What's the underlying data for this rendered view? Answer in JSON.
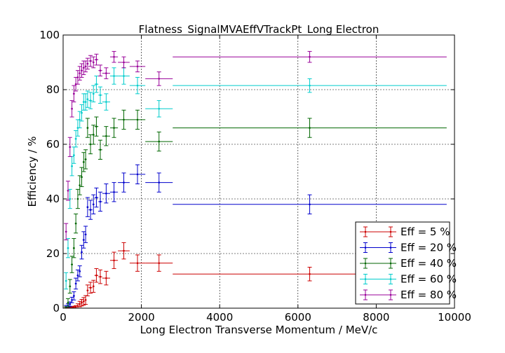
{
  "chart_data": {
    "type": "scatter",
    "title": "Flatness_SignalMVAEffVTrackPt_Long Electron",
    "xlabel": "Long Electron Transverse Momentum / MeV/c",
    "ylabel": "Efficiency / %",
    "xlim": [
      0,
      10000
    ],
    "ylim": [
      0,
      100
    ],
    "xticks": [
      "0",
      "2000",
      "4000",
      "6000",
      "8000",
      "10000"
    ],
    "yticks": [
      "0",
      "20",
      "40",
      "60",
      "80",
      "100"
    ],
    "grid": true,
    "legend_position": "bottom-right",
    "series": [
      {
        "name": "Eff = 5 %",
        "color": "#cc0000",
        "points": [
          [
            75,
            0.1,
            25,
            0.3
          ],
          [
            125,
            0.1,
            25,
            0.3
          ],
          [
            175,
            0.2,
            25,
            0.3
          ],
          [
            225,
            0.2,
            25,
            0.3
          ],
          [
            275,
            0.3,
            25,
            0.4
          ],
          [
            325,
            0.4,
            25,
            0.5
          ],
          [
            375,
            0.8,
            25,
            0.8
          ],
          [
            425,
            1.5,
            25,
            1.0
          ],
          [
            475,
            2.0,
            25,
            1.2
          ],
          [
            525,
            2.5,
            25,
            1.4
          ],
          [
            575,
            3.0,
            25,
            1.6
          ],
          [
            625,
            6.5,
            25,
            2.0
          ],
          [
            700,
            7.5,
            50,
            2.0
          ],
          [
            775,
            8.0,
            25,
            2.2
          ],
          [
            850,
            12.0,
            50,
            2.5
          ],
          [
            950,
            11.5,
            50,
            2.5
          ],
          [
            1100,
            11.0,
            100,
            2.5
          ],
          [
            1300,
            17.5,
            100,
            3.0
          ],
          [
            1550,
            21.0,
            150,
            3.0
          ],
          [
            1900,
            16.5,
            200,
            3.0
          ],
          [
            2450,
            16.5,
            350,
            3.0
          ],
          [
            6300,
            12.5,
            3500,
            2.5
          ]
        ]
      },
      {
        "name": "Eff = 20 %",
        "color": "#0000cc",
        "points": [
          [
            75,
            0.5,
            25,
            0.5
          ],
          [
            125,
            1.0,
            25,
            0.6
          ],
          [
            175,
            1.5,
            25,
            0.8
          ],
          [
            225,
            3.0,
            25,
            1.0
          ],
          [
            275,
            4.5,
            25,
            1.5
          ],
          [
            325,
            9.0,
            25,
            2.0
          ],
          [
            375,
            12.0,
            25,
            2.0
          ],
          [
            425,
            13.5,
            25,
            2.0
          ],
          [
            475,
            20.5,
            25,
            2.5
          ],
          [
            525,
            25.0,
            25,
            3.0
          ],
          [
            575,
            27.0,
            25,
            3.0
          ],
          [
            625,
            37.0,
            25,
            3.5
          ],
          [
            700,
            36.0,
            50,
            3.5
          ],
          [
            775,
            38.0,
            25,
            3.5
          ],
          [
            850,
            40.5,
            50,
            3.5
          ],
          [
            950,
            39.0,
            50,
            3.5
          ],
          [
            1100,
            42.0,
            100,
            3.5
          ],
          [
            1300,
            42.5,
            100,
            3.5
          ],
          [
            1550,
            46.0,
            150,
            3.5
          ],
          [
            1900,
            49.0,
            200,
            3.5
          ],
          [
            2450,
            46.0,
            350,
            3.5
          ],
          [
            6300,
            38.0,
            3500,
            3.5
          ]
        ]
      },
      {
        "name": "Eff = 40 %",
        "color": "#006600",
        "points": [
          [
            75,
            0.0,
            25,
            0.5
          ],
          [
            125,
            2.0,
            25,
            1.5
          ],
          [
            175,
            8.0,
            25,
            2.5
          ],
          [
            225,
            16.0,
            25,
            3.0
          ],
          [
            275,
            22.0,
            25,
            3.5
          ],
          [
            325,
            31.0,
            25,
            3.5
          ],
          [
            375,
            40.0,
            25,
            3.5
          ],
          [
            425,
            45.0,
            25,
            3.5
          ],
          [
            475,
            48.0,
            25,
            3.5
          ],
          [
            525,
            53.5,
            25,
            3.5
          ],
          [
            575,
            54.5,
            25,
            3.5
          ],
          [
            625,
            66.0,
            25,
            3.5
          ],
          [
            700,
            60.0,
            50,
            3.5
          ],
          [
            775,
            63.5,
            25,
            3.5
          ],
          [
            850,
            66.5,
            50,
            3.5
          ],
          [
            950,
            58.0,
            50,
            3.5
          ],
          [
            1100,
            63.0,
            100,
            3.5
          ],
          [
            1300,
            66.0,
            100,
            3.5
          ],
          [
            1550,
            69.0,
            150,
            3.5
          ],
          [
            1900,
            69.0,
            200,
            3.5
          ],
          [
            2450,
            61.0,
            350,
            3.5
          ],
          [
            6300,
            66.0,
            3500,
            3.5
          ]
        ]
      },
      {
        "name": "Eff = 60 %",
        "color": "#00cccc",
        "points": [
          [
            75,
            10.0,
            25,
            3.0
          ],
          [
            125,
            22.0,
            25,
            3.5
          ],
          [
            175,
            40.0,
            25,
            3.5
          ],
          [
            225,
            52.0,
            25,
            3.5
          ],
          [
            275,
            56.0,
            25,
            3.0
          ],
          [
            325,
            62.0,
            25,
            3.0
          ],
          [
            375,
            66.0,
            25,
            3.0
          ],
          [
            425,
            69.0,
            25,
            3.0
          ],
          [
            475,
            71.5,
            25,
            3.0
          ],
          [
            525,
            75.5,
            25,
            3.0
          ],
          [
            575,
            75.5,
            25,
            3.0
          ],
          [
            625,
            76.5,
            25,
            3.0
          ],
          [
            700,
            76.0,
            50,
            3.0
          ],
          [
            775,
            78.5,
            25,
            3.0
          ],
          [
            850,
            82.0,
            50,
            3.0
          ],
          [
            950,
            78.0,
            50,
            3.0
          ],
          [
            1100,
            75.5,
            100,
            3.0
          ],
          [
            1300,
            85.0,
            100,
            3.0
          ],
          [
            1550,
            85.0,
            150,
            3.0
          ],
          [
            1900,
            81.5,
            200,
            3.0
          ],
          [
            2450,
            73.0,
            350,
            3.0
          ],
          [
            6300,
            81.5,
            3500,
            2.5
          ]
        ]
      },
      {
        "name": "Eff = 80 %",
        "color": "#990099",
        "points": [
          [
            75,
            28.0,
            25,
            3.0
          ],
          [
            125,
            43.0,
            25,
            3.5
          ],
          [
            175,
            59.0,
            25,
            3.5
          ],
          [
            225,
            73.0,
            25,
            3.0
          ],
          [
            275,
            78.5,
            25,
            3.0
          ],
          [
            325,
            82.0,
            25,
            2.5
          ],
          [
            375,
            84.5,
            25,
            2.5
          ],
          [
            425,
            86.0,
            25,
            2.5
          ],
          [
            475,
            87.0,
            25,
            2.5
          ],
          [
            525,
            88.0,
            25,
            2.5
          ],
          [
            575,
            88.5,
            25,
            2.0
          ],
          [
            625,
            89.5,
            25,
            2.0
          ],
          [
            700,
            90.5,
            50,
            2.0
          ],
          [
            775,
            90.0,
            25,
            2.0
          ],
          [
            850,
            91.0,
            50,
            2.0
          ],
          [
            950,
            87.0,
            50,
            2.0
          ],
          [
            1100,
            86.0,
            100,
            2.0
          ],
          [
            1300,
            92.0,
            100,
            2.0
          ],
          [
            1550,
            90.0,
            150,
            2.0
          ],
          [
            1900,
            88.5,
            200,
            2.0
          ],
          [
            2450,
            84.0,
            350,
            2.5
          ],
          [
            6300,
            92.0,
            3500,
            2.0
          ]
        ]
      }
    ]
  }
}
